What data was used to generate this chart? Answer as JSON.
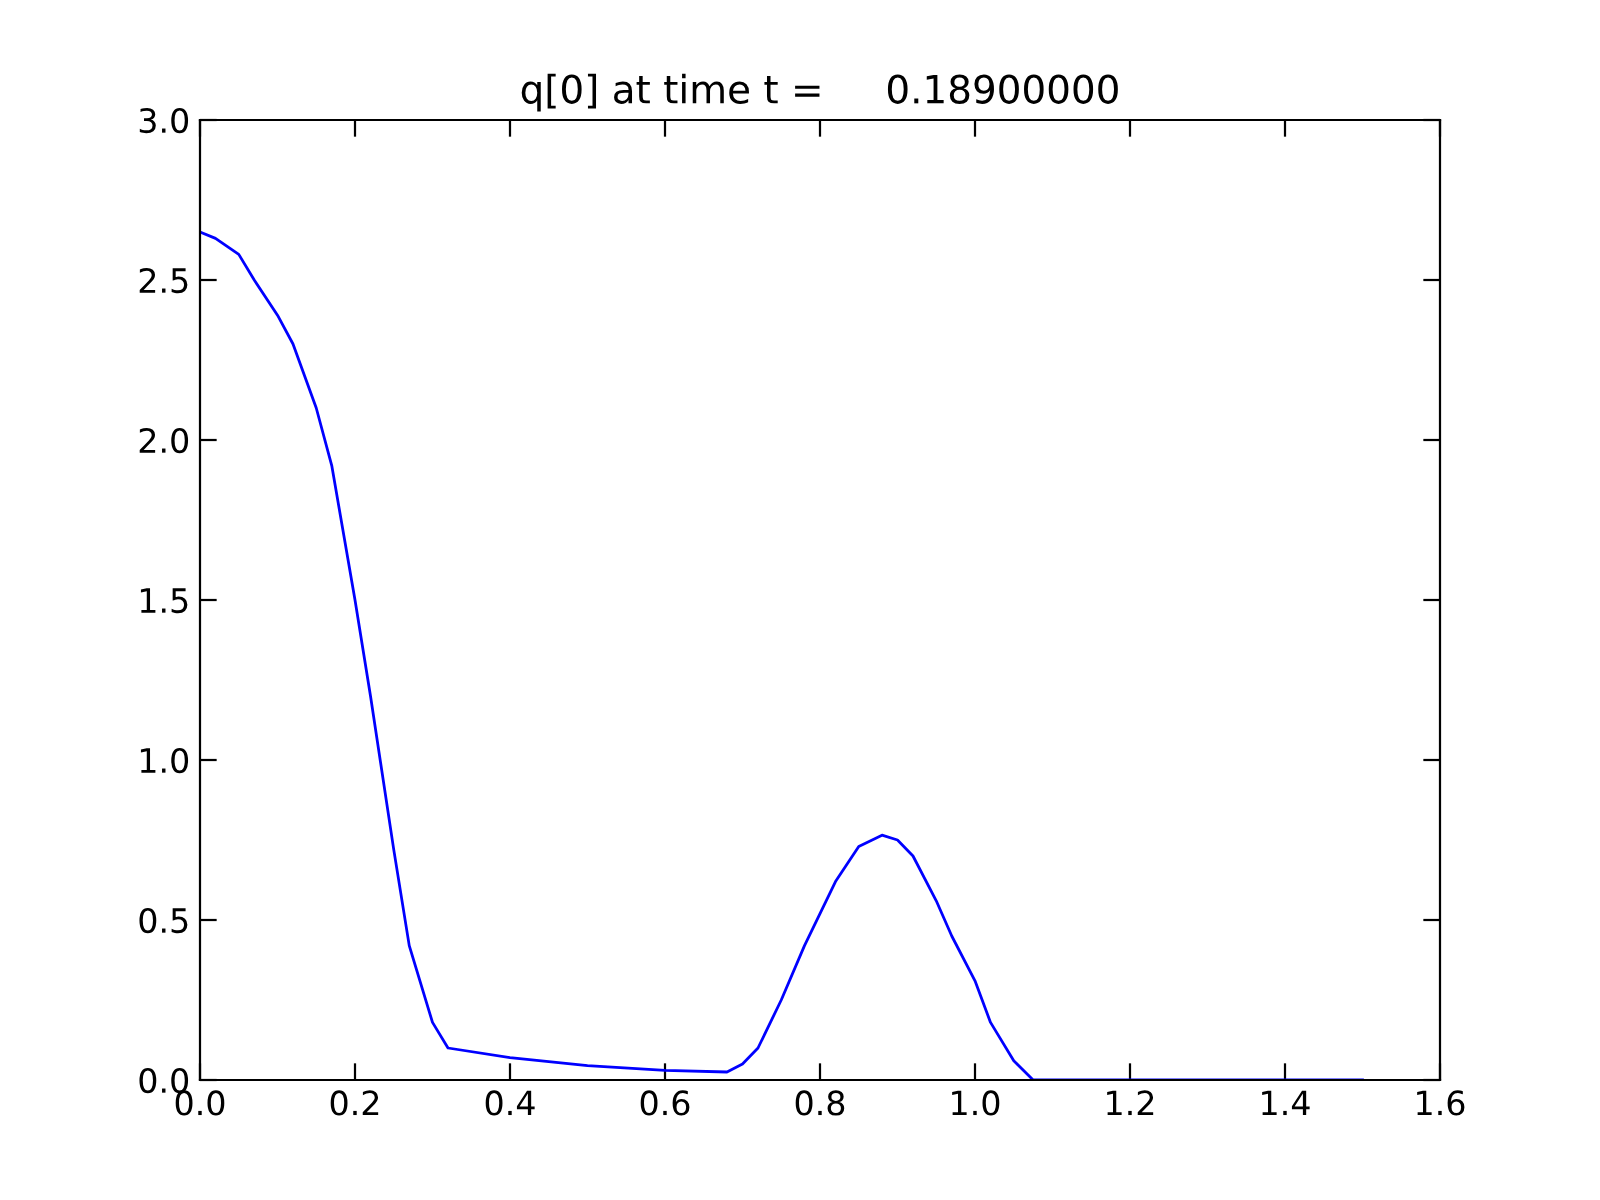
{
  "chart_data": {
    "type": "line",
    "title": "q[0] at time t =     0.18900000",
    "x": [
      0.0,
      0.02,
      0.05,
      0.07,
      0.1,
      0.12,
      0.15,
      0.17,
      0.2,
      0.22,
      0.25,
      0.27,
      0.3,
      0.32,
      0.4,
      0.5,
      0.6,
      0.68,
      0.7,
      0.72,
      0.75,
      0.78,
      0.8,
      0.82,
      0.85,
      0.88,
      0.9,
      0.92,
      0.95,
      0.97,
      1.0,
      1.02,
      1.05,
      1.075,
      1.2,
      1.5
    ],
    "series": [
      {
        "color": "#0000ff",
        "values": [
          2.65,
          2.63,
          2.58,
          2.5,
          2.39,
          2.3,
          2.1,
          1.92,
          1.5,
          1.2,
          0.72,
          0.42,
          0.18,
          0.1,
          0.07,
          0.045,
          0.03,
          0.025,
          0.05,
          0.1,
          0.25,
          0.42,
          0.52,
          0.62,
          0.73,
          0.765,
          0.75,
          0.7,
          0.56,
          0.45,
          0.31,
          0.18,
          0.06,
          0.0,
          0.0,
          0.0
        ]
      }
    ],
    "xlim": [
      0.0,
      1.6
    ],
    "ylim": [
      0.0,
      3.0
    ],
    "xticks": [
      {
        "value": 0,
        "label": "0.0"
      },
      {
        "value": 0.2,
        "label": "0.2"
      },
      {
        "value": 0.4,
        "label": "0.4"
      },
      {
        "value": 0.6,
        "label": "0.6"
      },
      {
        "value": 0.8,
        "label": "0.8"
      },
      {
        "value": 1,
        "label": "1.0"
      },
      {
        "value": 1.2,
        "label": "1.2"
      },
      {
        "value": 1.4,
        "label": "1.4"
      },
      {
        "value": 1.6,
        "label": "1.6"
      }
    ],
    "yticks": [
      {
        "value": 0,
        "label": "0.0"
      },
      0.5,
      {
        "value": 1,
        "label": "1.0"
      },
      1.5,
      {
        "value": 2,
        "label": "2.0"
      },
      2.5,
      {
        "value": 3,
        "label": "3.0"
      }
    ],
    "grid": false,
    "legend": false
  }
}
